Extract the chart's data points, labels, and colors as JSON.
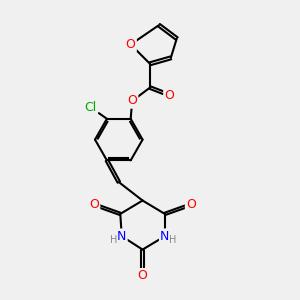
{
  "background_color": "#f0f0f0",
  "bond_color": "#000000",
  "atom_colors": {
    "O": "#ff0000",
    "N": "#0000ff",
    "Cl": "#00aa00",
    "H": "#888888",
    "C": "#000000"
  },
  "font_size_atoms": 9,
  "font_size_small": 7
}
